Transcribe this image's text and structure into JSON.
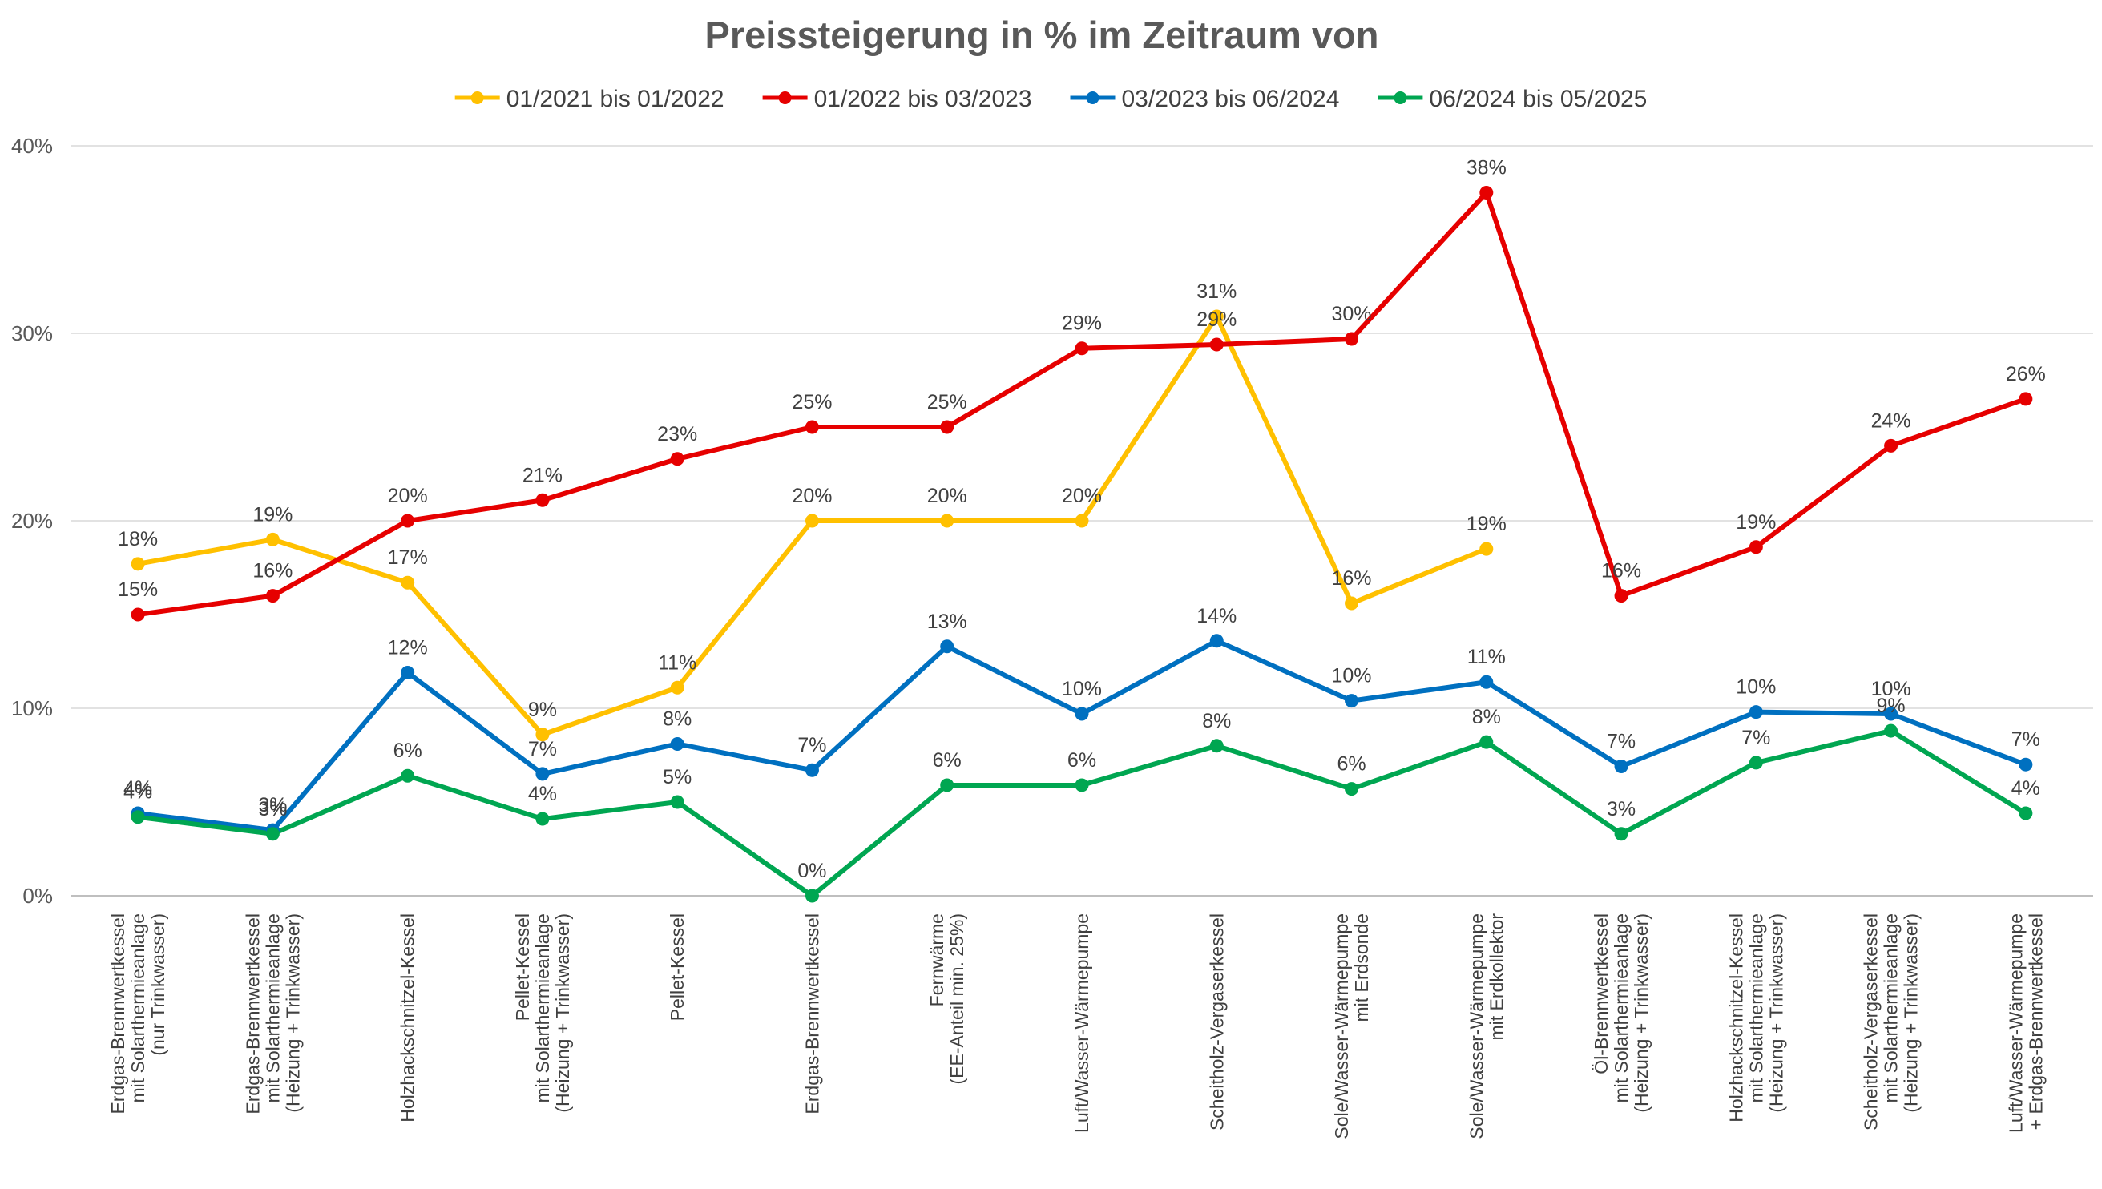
{
  "chart_data": {
    "type": "line",
    "title": "Preissteigerung in % im Zeitraum von",
    "xlabel": "",
    "ylabel": "",
    "ylim": [
      0,
      40
    ],
    "yticks": [
      0,
      10,
      20,
      30,
      40
    ],
    "ytick_labels": [
      "0%",
      "10%",
      "20%",
      "30%",
      "40%"
    ],
    "grid": true,
    "legend_position": "top",
    "categories": [
      [
        "Erdgas-Brennwertkessel",
        "mit Solarthermieanlage",
        "(nur Trinkwasser)"
      ],
      [
        "Erdgas-Brennwertkessel",
        "mit Solarthermieanlage",
        "(Heizung + Trinkwasser)"
      ],
      [
        "Holzhackschnitzel-Kessel"
      ],
      [
        "Pellet-Kessel",
        "mit Solarthermieanlage",
        "(Heizung + Trinkwasser)"
      ],
      [
        "Pellet-Kessel"
      ],
      [
        "Erdgas-Brennwertkessel"
      ],
      [
        "Fernwärme",
        "(EE-Anteil min. 25%)"
      ],
      [
        "Luft/Wasser-Wärmepumpe"
      ],
      [
        "Scheitholz-Vergaserkessel"
      ],
      [
        "Sole/Wasser-Wärmepumpe",
        "mit Erdsonde"
      ],
      [
        "Sole/Wasser-Wärmepumpe",
        "mit Erdkollektor"
      ],
      [
        "Öl-Brennwertkessel",
        "mit Solarthermieanlage",
        "(Heizung + Trinkwasser)"
      ],
      [
        "Holzhackschnitzel-Kessel",
        "mit Solarthermieanlage",
        "(Heizung + Trinkwasser)"
      ],
      [
        "Scheitholz-Vergaserkessel",
        "mit Solarthermieanlage",
        "(Heizung + Trinkwasser)"
      ],
      [
        "Luft/Wasser-Wärmepumpe",
        "+ Erdgas-Brennwertkessel"
      ]
    ],
    "series": [
      {
        "name": "01/2021 bis 01/2022",
        "color": "#ffc000",
        "values": [
          17.7,
          19.0,
          16.7,
          8.6,
          11.1,
          20.0,
          20.0,
          20.0,
          30.9,
          15.6,
          18.5,
          null,
          null,
          null,
          null
        ],
        "labels": [
          "18%",
          "19%",
          "17%",
          "9%",
          "11%",
          "20%",
          "20%",
          "20%",
          "31%",
          "16%",
          "19%",
          null,
          null,
          null,
          null
        ]
      },
      {
        "name": "01/2022 bis 03/2023",
        "color": "#e60000",
        "values": [
          15.0,
          16.0,
          20.0,
          21.1,
          23.3,
          25.0,
          25.0,
          29.2,
          29.4,
          29.7,
          37.5,
          16.0,
          18.6,
          24.0,
          26.5
        ],
        "labels": [
          "15%",
          "16%",
          "20%",
          "21%",
          "23%",
          "25%",
          "25%",
          "29%",
          "29%",
          "30%",
          "38%",
          "16%",
          "19%",
          "24%",
          "26%"
        ]
      },
      {
        "name": "03/2023 bis 06/2024",
        "color": "#0070c0",
        "values": [
          4.4,
          3.5,
          11.9,
          6.5,
          8.1,
          6.7,
          13.3,
          9.7,
          13.6,
          10.4,
          11.4,
          6.9,
          9.8,
          9.7,
          7.0
        ],
        "labels": [
          "4%",
          "3%",
          "12%",
          "7%",
          "8%",
          "7%",
          "13%",
          "10%",
          "14%",
          "10%",
          "11%",
          "7%",
          "10%",
          "10%",
          "7%"
        ]
      },
      {
        "name": "06/2024 bis 05/2025",
        "color": "#00a651",
        "values": [
          4.2,
          3.3,
          6.4,
          4.1,
          5.0,
          0.0,
          5.9,
          5.9,
          8.0,
          5.7,
          8.2,
          3.3,
          7.1,
          8.8,
          4.4
        ],
        "labels": [
          "4%",
          "3%",
          "6%",
          "4%",
          "5%",
          "0%",
          "6%",
          "6%",
          "8%",
          "6%",
          "8%",
          "3%",
          "7%",
          "9%",
          "4%"
        ]
      }
    ]
  }
}
